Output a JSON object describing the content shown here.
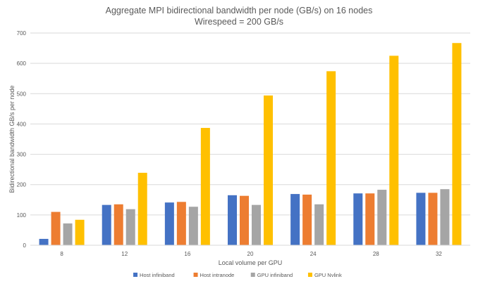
{
  "chart_data": {
    "type": "bar",
    "title": "Aggregate MPI bidirectional bandwidth per node (GB/s) on 16 nodes",
    "subtitle": "Wirespeed = 200 GB/s",
    "xlabel": "Local volume per GPU",
    "ylabel": "Bidirectional bandwidth GB/s per node",
    "ylim": [
      0,
      700
    ],
    "yticks": [
      0,
      100,
      200,
      300,
      400,
      500,
      600,
      700
    ],
    "grid": true,
    "legend_position": "bottom",
    "categories": [
      "8",
      "12",
      "16",
      "20",
      "24",
      "28",
      "32"
    ],
    "series": [
      {
        "name": "Host infiniband",
        "color": "#4472C4",
        "values": [
          21,
          133,
          141,
          165,
          169,
          171,
          173
        ]
      },
      {
        "name": "Host intranode",
        "color": "#ED7D31",
        "values": [
          110,
          135,
          143,
          163,
          167,
          171,
          173
        ]
      },
      {
        "name": "GPU infiniband",
        "color": "#A5A5A5",
        "values": [
          72,
          119,
          127,
          133,
          135,
          183,
          185
        ]
      },
      {
        "name": "GPU Nvlink",
        "color": "#FFC000",
        "values": [
          84,
          239,
          387,
          494,
          574,
          625,
          667
        ]
      }
    ]
  }
}
